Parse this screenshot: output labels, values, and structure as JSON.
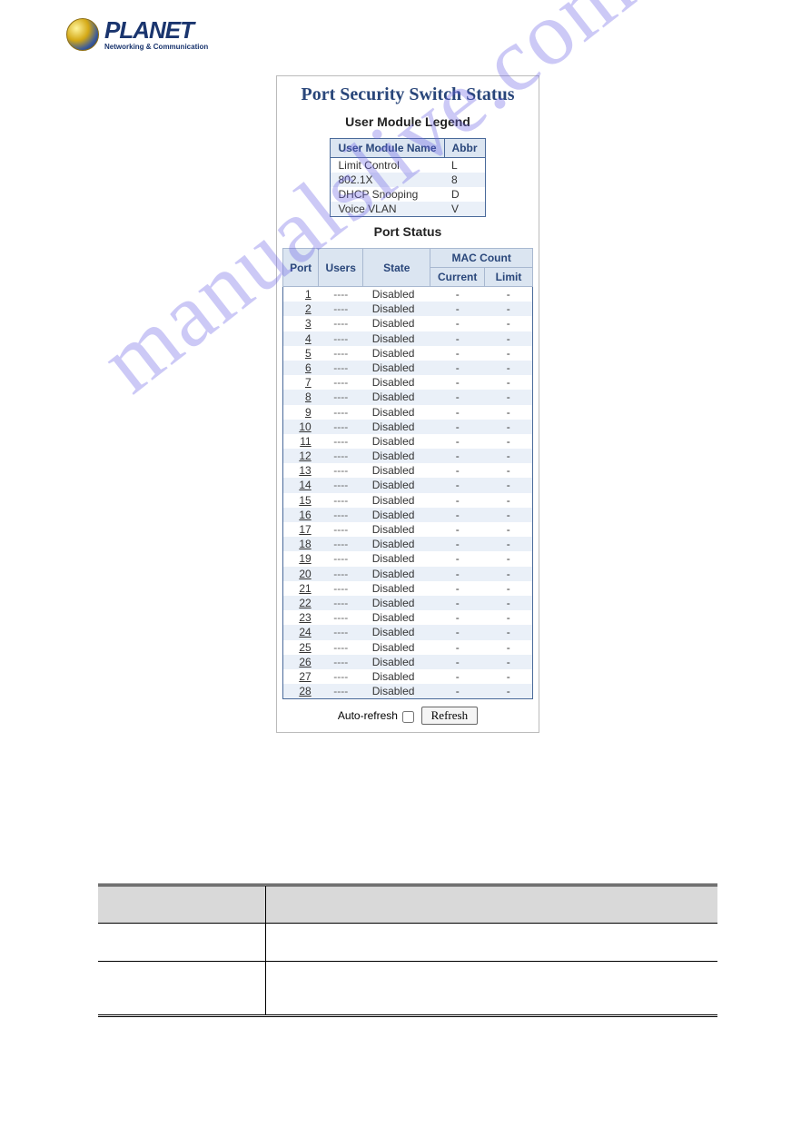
{
  "logo": {
    "brand": "PLANET",
    "tagline": "Networking & Communication"
  },
  "panel": {
    "title": "Port Security Switch Status",
    "legend_title": "User Module Legend",
    "legend_headers": {
      "name": "User Module Name",
      "abbr": "Abbr"
    },
    "legend_rows": [
      {
        "name": "Limit Control",
        "abbr": "L"
      },
      {
        "name": "802.1X",
        "abbr": "8"
      },
      {
        "name": "DHCP Snooping",
        "abbr": "D"
      },
      {
        "name": "Voice VLAN",
        "abbr": "V"
      }
    ],
    "status_title": "Port Status",
    "status_headers": {
      "port": "Port",
      "users": "Users",
      "state": "State",
      "mac_count": "MAC Count",
      "current": "Current",
      "limit": "Limit"
    },
    "port_count": 28,
    "row_defaults": {
      "users": "----",
      "state": "Disabled",
      "current": "-",
      "limit": "-"
    },
    "auto_refresh_label": "Auto-refresh",
    "refresh_label": "Refresh"
  },
  "watermark": "manualslive.com",
  "colors": {
    "title_color": "#29467a",
    "header_bg": "#dbe5f1",
    "row_alt_bg": "#eaf0f8",
    "border_color": "#4a6a9a",
    "watermark_color": "rgba(110,100,230,0.35)"
  }
}
